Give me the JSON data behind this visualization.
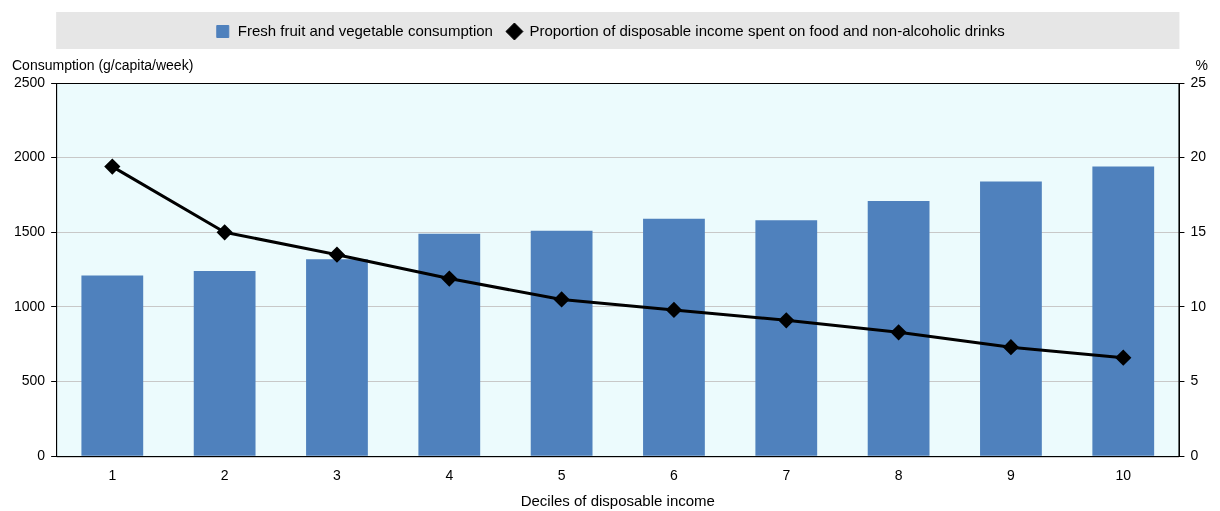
{
  "chart_data": {
    "type": "bar",
    "xlabel": "Deciles of disposable income",
    "ylabel": "Consumption (g/capita/week)",
    "y2label": "%",
    "categories": [
      "1",
      "2",
      "3",
      "4",
      "5",
      "6",
      "7",
      "8",
      "9",
      "10"
    ],
    "series": [
      {
        "name": "Fresh fruit and vegetable consumption",
        "color": "#4f81bd",
        "values": [
          1210,
          1240,
          1320,
          1490,
          1510,
          1590,
          1580,
          1710,
          1840,
          1940
        ]
      },
      {
        "name": "Proportion of disposable income spent on food and non-alcoholic drinks",
        "type": "line",
        "axis": "y2",
        "color": "#000000",
        "marker": "diamond",
        "values": [
          19.4,
          15.0,
          13.5,
          11.9,
          10.5,
          9.8,
          9.1,
          8.3,
          7.3,
          6.6
        ]
      }
    ],
    "ylim": [
      0,
      2500
    ],
    "yticks": [
      0,
      500,
      1000,
      1500,
      2000,
      2500
    ],
    "y2lim": [
      0,
      25
    ],
    "y2ticks": [
      0,
      5,
      10,
      15,
      20,
      25
    ],
    "grid": "y",
    "legend": "top"
  }
}
